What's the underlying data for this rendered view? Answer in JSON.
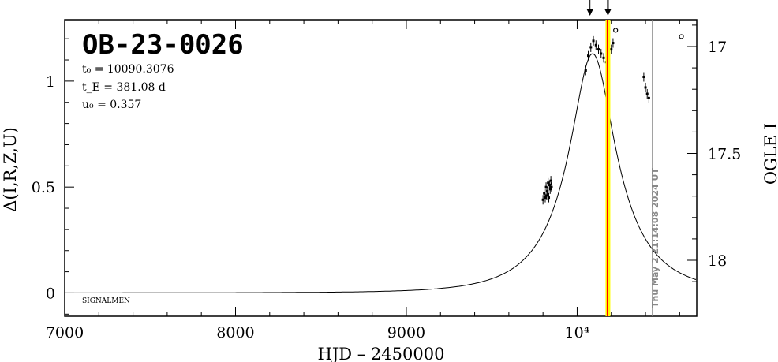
{
  "chart_data": {
    "type": "scatter",
    "title": "OB-23-0026",
    "xlabel": "HJD – 2450000",
    "ylabel_left": "Δ(I,R,Z,U)",
    "ylabel_right": "OGLE I",
    "xlim": [
      7000,
      10700
    ],
    "ylim": [
      -0.11,
      1.29
    ],
    "x_ticks": [
      {
        "value": 7000,
        "label": "7000"
      },
      {
        "value": 8000,
        "label": "8000"
      },
      {
        "value": 9000,
        "label": "9000"
      },
      {
        "value": 10000,
        "label": "10⁴"
      }
    ],
    "y_ticks_left": [
      {
        "value": 0,
        "label": "0"
      },
      {
        "value": 0.5,
        "label": "0.5"
      },
      {
        "value": 1,
        "label": "1"
      }
    ],
    "y_ticks_right": [
      {
        "value": 17,
        "label": "17"
      },
      {
        "value": 17.5,
        "label": "17.5"
      },
      {
        "value": 18,
        "label": "18"
      }
    ],
    "params": {
      "t0_label": "t₀ = 10090.3076",
      "tE_label": "t_E = 381.08 d",
      "u0_label": "u₀ = 0.357"
    },
    "model": {
      "t0": 10090.3076,
      "tE": 381.08,
      "u0": 0.357,
      "delta_scale": 1.13
    },
    "data_segments": [
      {
        "x": [
          9800,
          9807,
          9813,
          9818,
          9822,
          9826,
          9830,
          9834,
          9838,
          9842,
          9846,
          9850
        ],
        "y": [
          0.44,
          0.47,
          0.45,
          0.5,
          0.46,
          0.48,
          0.52,
          0.45,
          0.51,
          0.49,
          0.53,
          0.5
        ]
      },
      {
        "x": [
          10050,
          10065,
          10080,
          10095,
          10110,
          10125,
          10140,
          10155,
          10170,
          10185,
          10200,
          10210
        ],
        "y": [
          1.05,
          1.12,
          1.16,
          1.19,
          1.17,
          1.15,
          1.13,
          1.11,
          1.09,
          1.12,
          1.15,
          1.18
        ],
        "note": ""
      },
      {
        "x": [
          10390,
          10400,
          10410,
          10420
        ],
        "y": [
          1.02,
          0.97,
          0.94,
          0.92
        ]
      }
    ],
    "outlier_points": [
      {
        "x": 10225,
        "y": 1.24
      },
      {
        "x": 10610,
        "y": 1.21
      }
    ],
    "vlines": [
      {
        "x": 10173,
        "color": "#ffff00"
      },
      {
        "x": 10180,
        "color": "#ff0000"
      },
      {
        "x": 10187,
        "color": "#ffff00"
      },
      {
        "x": 10440,
        "color": "#888888"
      }
    ],
    "arrows": [
      {
        "x": 10075
      },
      {
        "x": 10180
      }
    ],
    "legend": "",
    "footer_label": "SIGNALMEN",
    "timestamp": "Thu May  2 21:14:08 2024 UT"
  }
}
